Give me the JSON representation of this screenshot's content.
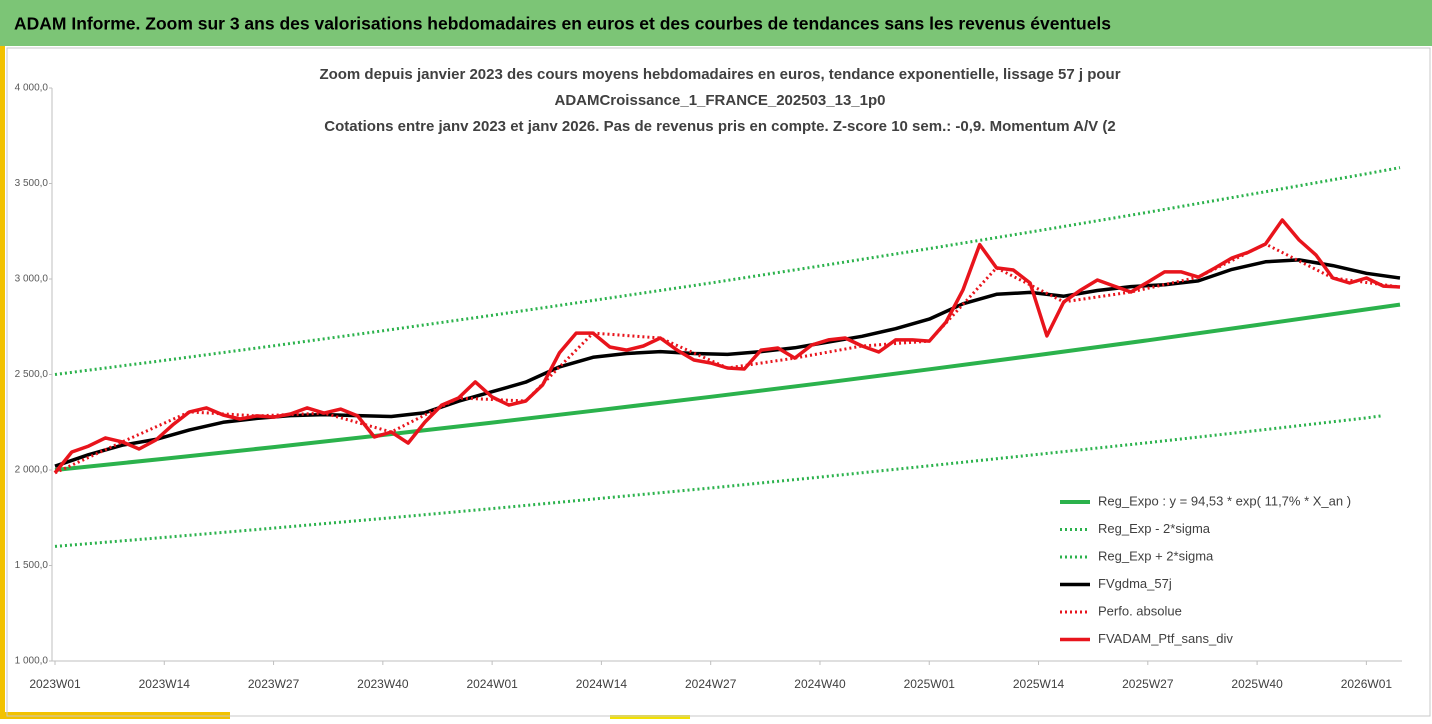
{
  "header": {
    "title": "ADAM Informe. Zoom sur 3 ans des valorisations hebdomadaires en euros et des courbes de tendances sans les revenus éventuels"
  },
  "chart_data": {
    "type": "line",
    "title": [
      "Zoom depuis janvier 2023 des cours moyens hebdomadaires  en euros, tendance exponentielle, lissage 57 j pour",
      "ADAMCroissance_1_FRANCE_202503_13_1p0",
      "Cotations  entre janv 2023 et janv 2026. Pas de revenus pris en compte. Z-score 10 sem.: -0,9. Momentum A/V (2"
    ],
    "xlim": [
      0,
      160
    ],
    "xticks": [
      {
        "value": 0,
        "label": "2023W01"
      },
      {
        "value": 13,
        "label": "2023W14"
      },
      {
        "value": 26,
        "label": "2023W27"
      },
      {
        "value": 39,
        "label": "2023W40"
      },
      {
        "value": 52,
        "label": "2024W01"
      },
      {
        "value": 65,
        "label": "2024W14"
      },
      {
        "value": 78,
        "label": "2024W27"
      },
      {
        "value": 91,
        "label": "2024W40"
      },
      {
        "value": 104,
        "label": "2025W01"
      },
      {
        "value": 117,
        "label": "2025W14"
      },
      {
        "value": 130,
        "label": "2025W27"
      },
      {
        "value": 143,
        "label": "2025W40"
      },
      {
        "value": 156,
        "label": "2026W01"
      }
    ],
    "ylim": [
      1000,
      4000
    ],
    "yticks": [
      {
        "value": 1000,
        "label": "1 000,0"
      },
      {
        "value": 1500,
        "label": "1 500,0"
      },
      {
        "value": 2000,
        "label": "2 000,0"
      },
      {
        "value": 2500,
        "label": "2 500,0"
      },
      {
        "value": 3000,
        "label": "3 000,0"
      },
      {
        "value": 3500,
        "label": "3 500,0"
      },
      {
        "value": 4000,
        "label": "4 000,0"
      }
    ],
    "grid": false,
    "legend": "bottom-right",
    "series": [
      {
        "name": "Reg_Expo : y = 94,53 * exp( 11,7% *  X_an )",
        "color": "#2bb24c",
        "dash": "solid",
        "width": 4,
        "x": [
          0,
          13,
          26,
          39,
          52,
          65,
          78,
          91,
          104,
          117,
          130,
          143,
          156,
          160
        ],
        "values": [
          2000,
          2059,
          2120,
          2183,
          2248,
          2315,
          2383,
          2454,
          2527,
          2602,
          2679,
          2759,
          2841,
          2866
        ]
      },
      {
        "name": "Reg_Exp - 2*sigma",
        "color": "#2bb24c",
        "dash": "dotted",
        "width": 3,
        "x": [
          0,
          13,
          26,
          39,
          52,
          65,
          78,
          91,
          104,
          117,
          130,
          143,
          156,
          158
        ],
        "values": [
          1600,
          1647,
          1696,
          1746,
          1798,
          1852,
          1906,
          1963,
          2022,
          2082,
          2143,
          2207,
          2273,
          2285
        ]
      },
      {
        "name": "Reg_Exp + 2*sigma",
        "color": "#2bb24c",
        "dash": "dotted",
        "width": 3,
        "x": [
          0,
          13,
          26,
          39,
          52,
          65,
          78,
          91,
          104,
          117,
          130,
          143,
          156,
          160
        ],
        "values": [
          2500,
          2574,
          2650,
          2729,
          2810,
          2894,
          2979,
          3068,
          3159,
          3253,
          3349,
          3449,
          3551,
          3583
        ]
      },
      {
        "name": "FVgdma_57j",
        "color": "#000000",
        "dash": "solid",
        "width": 3.5,
        "x": [
          0,
          4,
          8,
          12,
          16,
          20,
          24,
          28,
          32,
          36,
          40,
          44,
          48,
          52,
          56,
          60,
          64,
          68,
          72,
          76,
          80,
          84,
          88,
          92,
          96,
          100,
          104,
          108,
          112,
          116,
          120,
          124,
          128,
          132,
          136,
          140,
          144,
          148,
          152,
          156,
          160
        ],
        "values": [
          2020,
          2080,
          2130,
          2160,
          2210,
          2250,
          2270,
          2285,
          2290,
          2285,
          2280,
          2300,
          2360,
          2410,
          2460,
          2540,
          2590,
          2610,
          2620,
          2610,
          2605,
          2620,
          2640,
          2670,
          2700,
          2740,
          2790,
          2870,
          2920,
          2930,
          2910,
          2940,
          2960,
          2970,
          2990,
          3050,
          3090,
          3100,
          3070,
          3030,
          3005
        ]
      },
      {
        "name": "Perfo. absolue",
        "color": "#e8141c",
        "dash": "dotted",
        "width": 3,
        "x": [
          0,
          8,
          16,
          24,
          32,
          40,
          48,
          56,
          64,
          72,
          80,
          88,
          96,
          104,
          112,
          120,
          128,
          136,
          144,
          152,
          160
        ],
        "values": [
          1985,
          2147,
          2304,
          2283,
          2298,
          2199,
          2377,
          2361,
          2717,
          2691,
          2534,
          2586,
          2649,
          2675,
          3058,
          2880,
          2932,
          3010,
          3183,
          3005,
          2958
        ]
      },
      {
        "name": "FVADAM_Ptf_sans_div",
        "color": "#e8141c",
        "dash": "solid",
        "width": 3.5,
        "x": [
          0,
          2,
          4,
          6,
          8,
          10,
          12,
          14,
          16,
          18,
          20,
          22,
          24,
          26,
          28,
          30,
          32,
          34,
          36,
          38,
          40,
          42,
          44,
          46,
          48,
          50,
          52,
          54,
          56,
          58,
          60,
          62,
          64,
          66,
          68,
          70,
          72,
          74,
          76,
          78,
          80,
          82,
          84,
          86,
          88,
          90,
          92,
          94,
          96,
          98,
          100,
          102,
          104,
          106,
          108,
          110,
          112,
          114,
          116,
          118,
          120,
          122,
          124,
          126,
          128,
          130,
          132,
          134,
          136,
          138,
          140,
          142,
          144,
          146,
          148,
          150,
          152,
          154,
          156,
          158,
          160
        ],
        "values": [
          1985,
          2094,
          2125,
          2168,
          2147,
          2110,
          2157,
          2236,
          2304,
          2325,
          2288,
          2267,
          2283,
          2277,
          2293,
          2325,
          2298,
          2319,
          2283,
          2173,
          2199,
          2141,
          2251,
          2340,
          2377,
          2461,
          2382,
          2340,
          2361,
          2445,
          2613,
          2717,
          2717,
          2644,
          2628,
          2649,
          2691,
          2628,
          2576,
          2560,
          2534,
          2529,
          2628,
          2639,
          2586,
          2654,
          2681,
          2691,
          2649,
          2618,
          2681,
          2681,
          2675,
          2775,
          2942,
          3180,
          3058,
          3047,
          2979,
          2702,
          2880,
          2942,
          2995,
          2963,
          2932,
          2984,
          3037,
          3037,
          3010,
          3058,
          3110,
          3141,
          3183,
          3309,
          3204,
          3126,
          3005,
          2979,
          3005,
          2963,
          2958
        ]
      }
    ]
  }
}
